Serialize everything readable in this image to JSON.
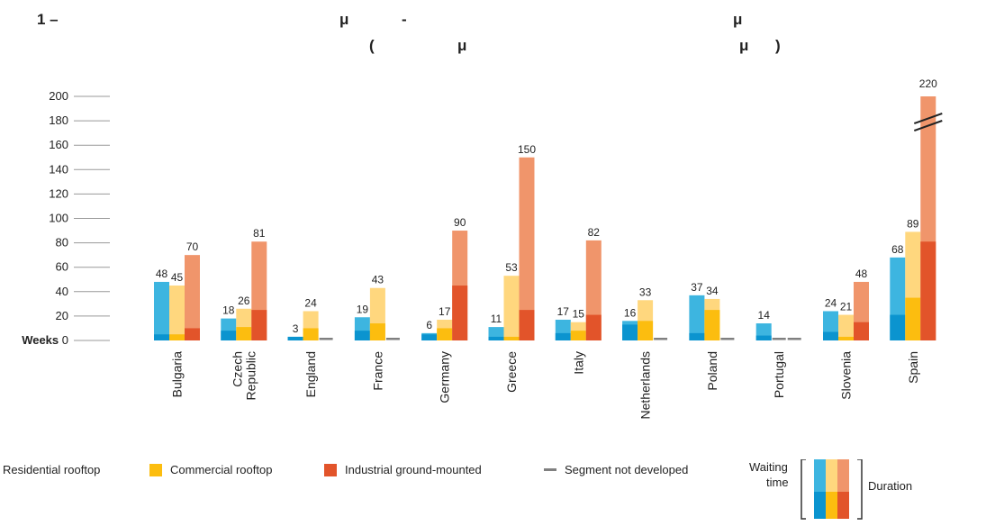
{
  "title": {
    "line1_a": "1 –",
    "line1_b": "μ",
    "line1_c": "-",
    "line1_d": "μ",
    "line2_a": "(",
    "line2_b": "μ",
    "line2_c": "μ",
    "line2_d": ")"
  },
  "colors": {
    "residential_waiting": "#3db5e0",
    "residential_duration": "#0b94cf",
    "commercial_waiting": "#ffd77e",
    "commercial_duration": "#fcbd0f",
    "industrial_waiting": "#f0956b",
    "industrial_duration": "#e2542a",
    "not_developed": "#808080",
    "axis": "#999999"
  },
  "chart_data": {
    "type": "bar",
    "ylabel": "Weeks",
    "ylim": [
      0,
      200
    ],
    "yticks": [
      0,
      20,
      40,
      60,
      80,
      100,
      120,
      140,
      160,
      180,
      200
    ],
    "ytick_labels": [
      "Weeks 0",
      "20",
      "40",
      "60",
      "80",
      "100",
      "120",
      "140",
      "160",
      "180",
      "200"
    ],
    "categories": [
      [
        "Bulgaria"
      ],
      [
        "Czech",
        "Republic"
      ],
      [
        "England"
      ],
      [
        "France"
      ],
      [
        "Germany"
      ],
      [
        "Greece"
      ],
      [
        "Italy"
      ],
      [
        "Netherlands"
      ],
      [
        "Poland"
      ],
      [
        "Portugal"
      ],
      [
        "Slovenia"
      ],
      [
        "Spain"
      ]
    ],
    "series": [
      {
        "name": "Residential rooftop",
        "totals": [
          48,
          18,
          3,
          19,
          6,
          11,
          17,
          16,
          37,
          14,
          24,
          68
        ],
        "duration": [
          5,
          8,
          3,
          8,
          5,
          3,
          6,
          13,
          6,
          4,
          7,
          21
        ]
      },
      {
        "name": "Commercial rooftop",
        "totals": [
          45,
          26,
          24,
          43,
          17,
          53,
          15,
          33,
          34,
          null,
          21,
          89
        ],
        "duration": [
          5,
          11,
          10,
          14,
          10,
          3,
          8,
          16,
          25,
          null,
          3,
          35
        ]
      },
      {
        "name": "Industrial ground-mounted",
        "totals": [
          70,
          81,
          null,
          null,
          90,
          150,
          82,
          null,
          null,
          null,
          48,
          220
        ],
        "duration": [
          10,
          25,
          null,
          null,
          45,
          25,
          21,
          null,
          null,
          null,
          15,
          81
        ]
      }
    ],
    "axis_break": {
      "category": "Spain",
      "series": "Industrial ground-mounted"
    },
    "legend": {
      "items": [
        "Residential rooftop",
        "Commercial rooftop",
        "Industrial ground-mounted",
        "Segment not developed"
      ],
      "waiting_label_1": "Waiting",
      "waiting_label_2": "time",
      "duration_label": "Duration",
      "placement": "bottom"
    }
  }
}
